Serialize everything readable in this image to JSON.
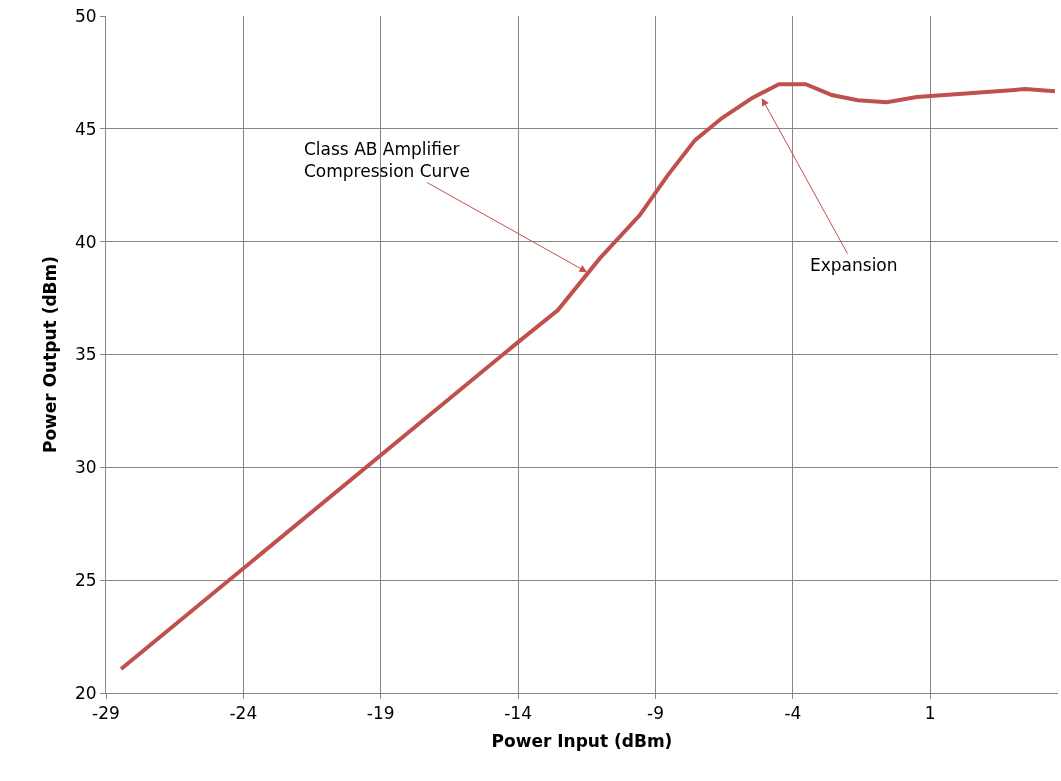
{
  "chart_data": {
    "type": "line",
    "xlabel": "Power Input (dBm)",
    "ylabel": "Power Output (dBm)",
    "x": [
      -28.45,
      -14,
      -12.55,
      -11.02,
      -9.57,
      -8.55,
      -7.56,
      -6.58,
      -5.49,
      -4.51,
      -3.53,
      -2.58,
      -1.64,
      -0.58,
      0.51,
      4.45,
      5.54
    ],
    "series": [
      {
        "color": "#c0504d",
        "values": [
          21.06,
          35.55,
          36.97,
          39.27,
          41.18,
          42.95,
          44.5,
          45.48,
          46.36,
          46.98,
          46.98,
          46.5,
          46.27,
          46.18,
          46.41,
          46.76,
          46.67
        ]
      }
    ],
    "xlim": [
      -29,
      5.65
    ],
    "xticks": [
      -29,
      -24,
      -19,
      -14,
      -9,
      -4,
      1
    ],
    "ylim": [
      20,
      50
    ],
    "yticks": [
      20,
      25,
      30,
      35,
      40,
      45,
      50
    ],
    "grid": true,
    "marker": "none",
    "line_style": "solid",
    "annotations": [
      {
        "text": "Class AB Amplifier\nCompression Curve",
        "x": -11.49,
        "y": 38.65
      },
      {
        "text": "Expansion",
        "x": -5.13,
        "y": 46.36
      }
    ]
  }
}
